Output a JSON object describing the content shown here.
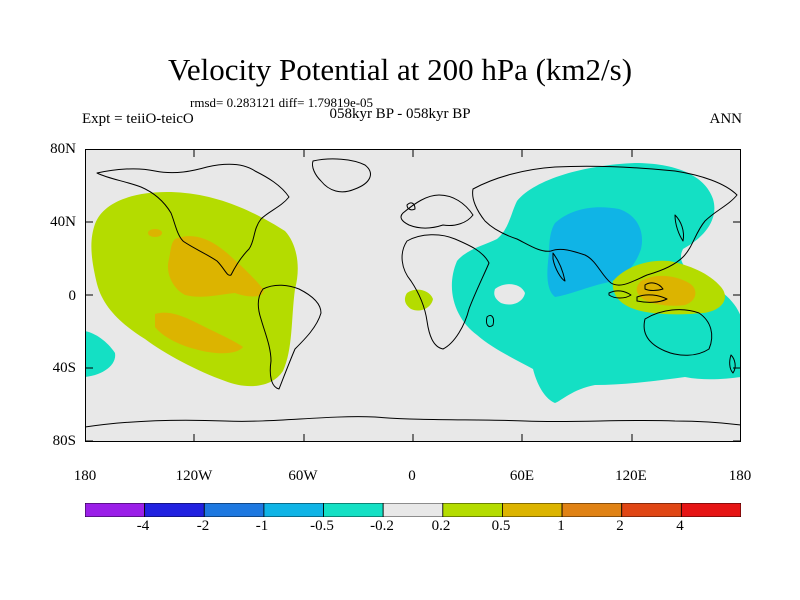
{
  "title": "Velocity Potential at 200 hPa (km2/s)",
  "stats": "rmsd= 0.283121 diff= 1.79819e-05",
  "left_label": "Expt = teiiO-teicO",
  "center_label": "058kyr BP - 058kyr BP",
  "right_label": "ANN",
  "lat_ticks": [
    "80N",
    "40N",
    "0",
    "40S",
    "80S"
  ],
  "lon_ticks": [
    "180",
    "120W",
    "60W",
    "0",
    "60E",
    "120E",
    "180"
  ],
  "colorbar": {
    "labels": [
      "-4",
      "-2",
      "-1",
      "-0.5",
      "-0.2",
      "0.2",
      "0.5",
      "1",
      "2",
      "4"
    ],
    "colors": [
      "#9b1fe8",
      "#2121e0",
      "#1e78e0",
      "#10b4e6",
      "#14e0c4",
      "#e8e8e8",
      "#b4dc00",
      "#dcb400",
      "#e08214",
      "#e04614",
      "#e61414"
    ]
  },
  "map_colors": {
    "ocean_neutral": "#e8e8e8",
    "pos_0_2": "#b4dc00",
    "pos_0_5": "#dcb400",
    "neg_0_2": "#14e0c4",
    "neg_0_5": "#10b4e6"
  }
}
